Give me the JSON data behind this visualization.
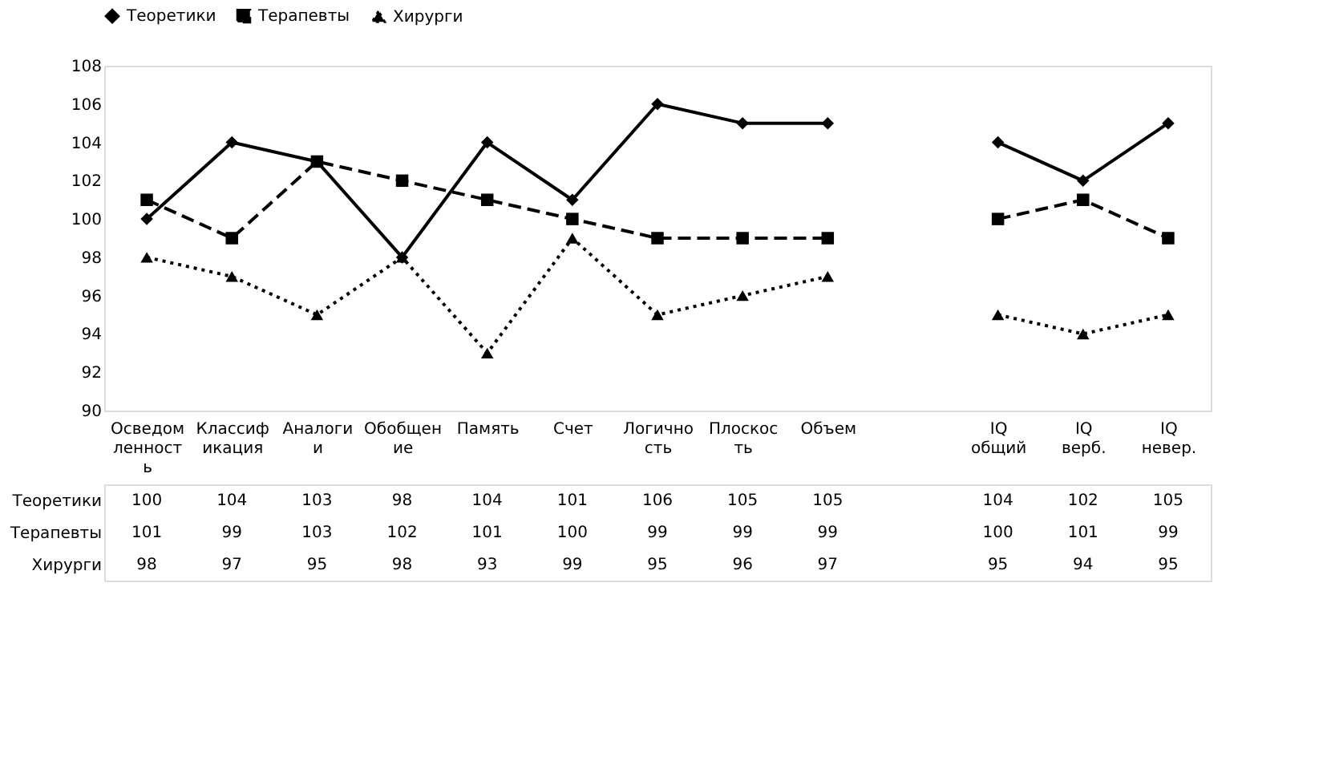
{
  "chart_data": {
    "type": "line",
    "categories": [
      "Осведомленность",
      "Классификация",
      "Аналогии",
      "Обобщение",
      "Память",
      "Счет",
      "Логичность",
      "Плоскость",
      "Объем",
      null,
      "IQ общий",
      "IQ верб.",
      "IQ невер."
    ],
    "series": [
      {
        "name": "Теоретики",
        "color": "#000000",
        "marker": "diamond",
        "line_style": "solid",
        "values": [
          100,
          104,
          103,
          98,
          104,
          101,
          106,
          105,
          105,
          null,
          104,
          102,
          105
        ]
      },
      {
        "name": "Терапевты",
        "color": "#000000",
        "marker": "square",
        "line_style": "dashed",
        "values": [
          101,
          99,
          103,
          102,
          101,
          100,
          99,
          99,
          99,
          null,
          100,
          101,
          99
        ]
      },
      {
        "name": "Хирурги",
        "color": "#000000",
        "marker": "triangle",
        "line_style": "dotted",
        "values": [
          98,
          97,
          95,
          98,
          93,
          99,
          95,
          96,
          97,
          null,
          95,
          94,
          95
        ]
      }
    ],
    "ylim": [
      90,
      108
    ],
    "yticks": [
      90,
      92,
      94,
      96,
      98,
      100,
      102,
      104,
      106,
      108
    ],
    "grid": false,
    "legend": "top",
    "data_labels": true
  }
}
